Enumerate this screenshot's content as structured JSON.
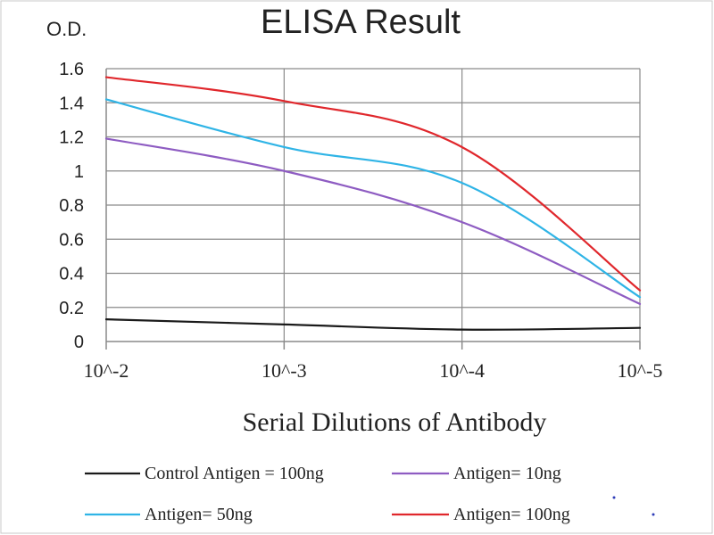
{
  "chart_data": {
    "type": "line",
    "title": "ELISA Result",
    "ylabel": "O.D.",
    "xlabel": "Serial Dilutions  of Antibody",
    "categories": [
      "10^-2",
      "10^-3",
      "10^-4",
      "10^-5"
    ],
    "x": [
      -2,
      -3,
      -4,
      -5
    ],
    "ylim": [
      0,
      1.6
    ],
    "yticks": [
      0,
      0.2,
      0.4,
      0.6,
      0.8,
      1,
      1.2,
      1.4,
      1.6
    ],
    "ytick_labels": [
      "0",
      "0.2",
      "0.4",
      "0.6",
      "0.8",
      "1",
      "1.2",
      "1.4",
      "1.6"
    ],
    "grid": true,
    "legend_position": "bottom",
    "series": [
      {
        "name": "Control Antigen = 100ng",
        "color": "#1a1a1a",
        "values": [
          0.13,
          0.1,
          0.07,
          0.08
        ]
      },
      {
        "name": "Antigen= 10ng",
        "color": "#8e5cc2",
        "values": [
          1.19,
          1.0,
          0.7,
          0.22
        ]
      },
      {
        "name": "Antigen= 50ng",
        "color": "#2fb4e6",
        "values": [
          1.42,
          1.14,
          0.93,
          0.26
        ]
      },
      {
        "name": "Antigen= 100ng",
        "color": "#e0272c",
        "values": [
          1.55,
          1.41,
          1.14,
          0.3
        ]
      }
    ]
  }
}
